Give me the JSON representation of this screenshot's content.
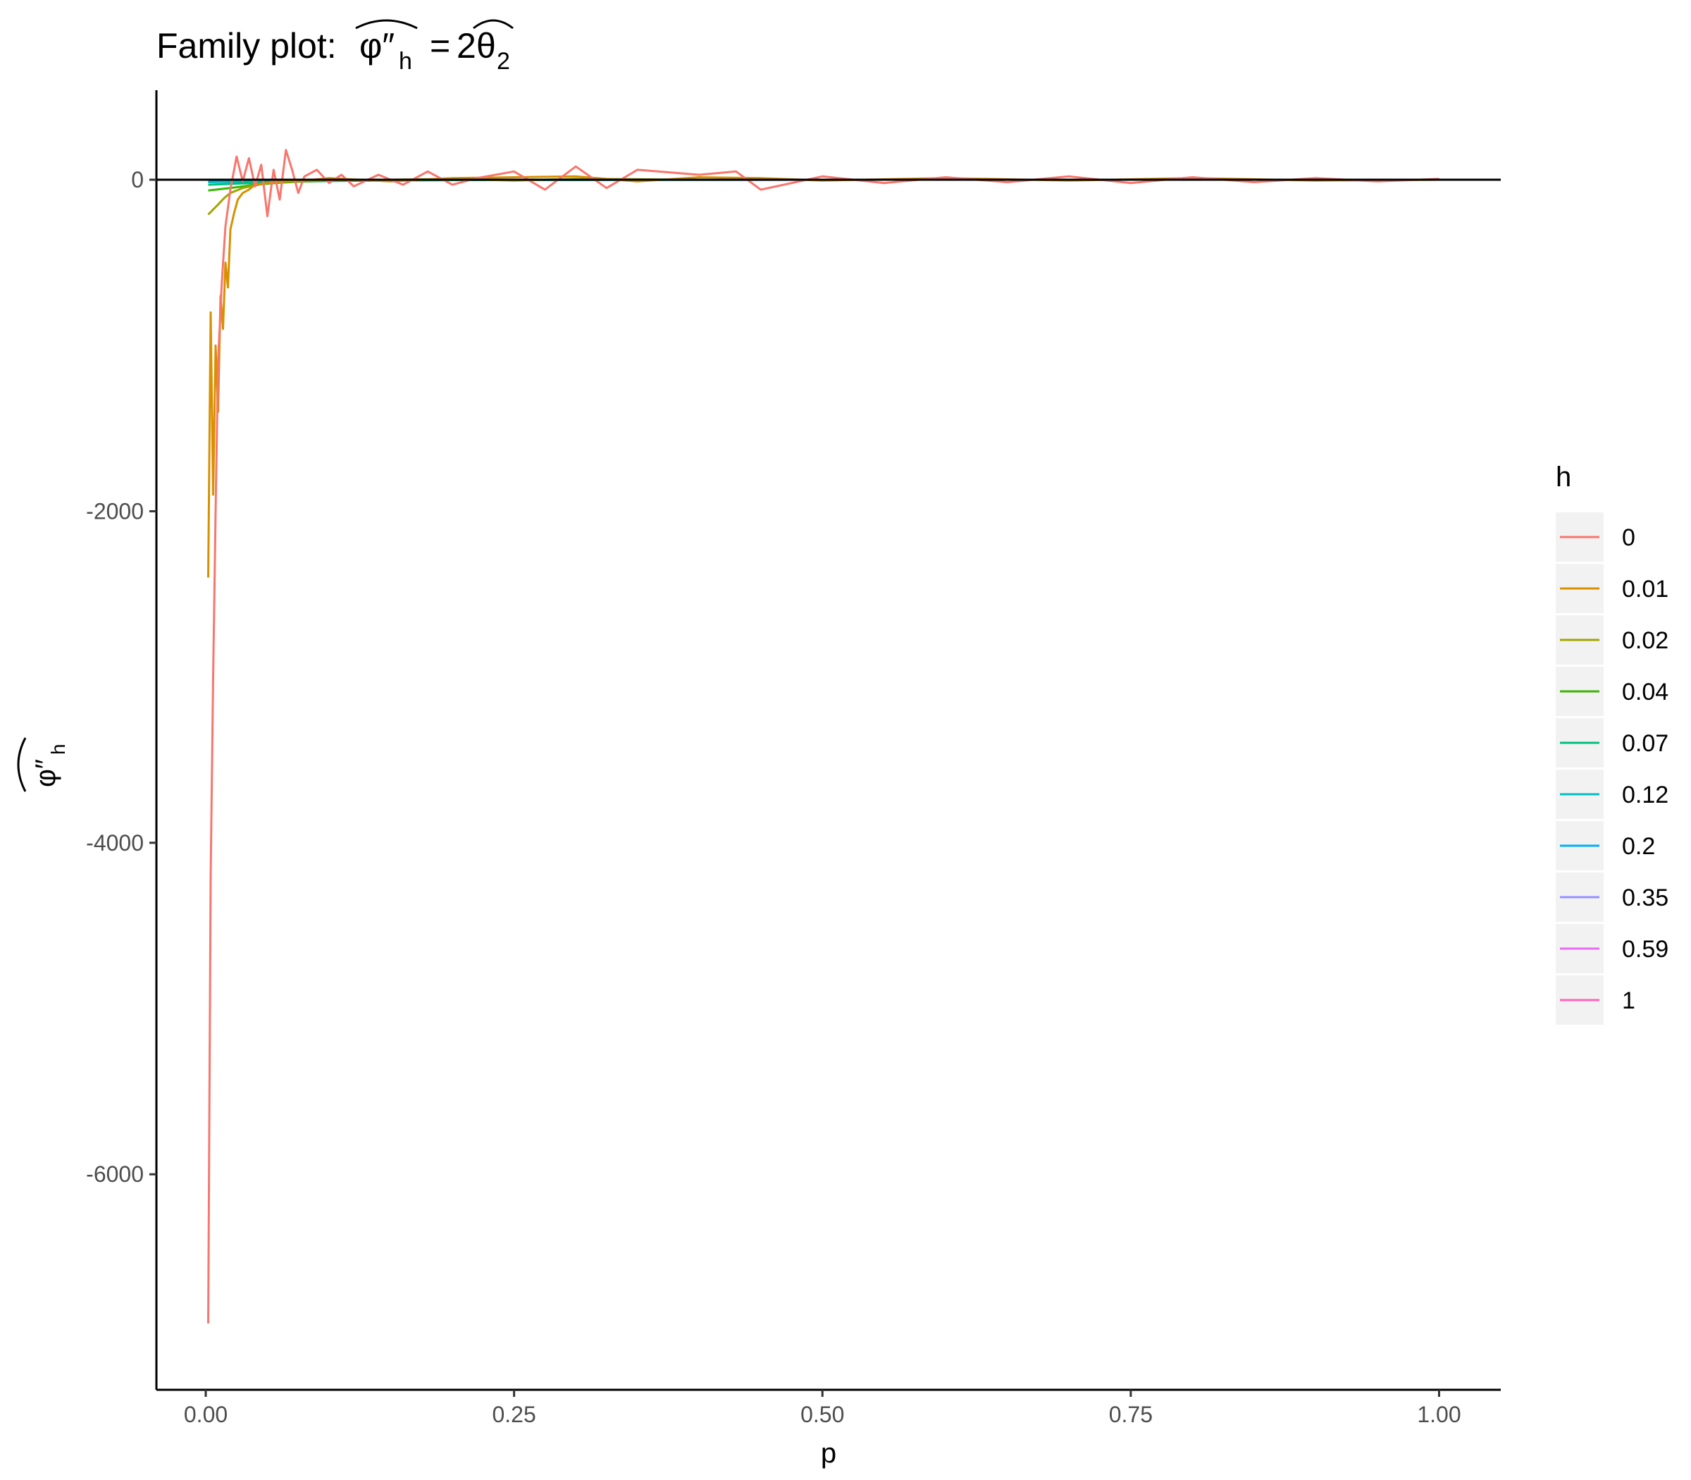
{
  "chart_data": {
    "type": "line",
    "title_prefix": "Family plot:",
    "title_lhs": "φ″",
    "title_lhs_sub": "h",
    "title_eq": "=",
    "title_rhs_coef": "2",
    "title_rhs": "θ",
    "title_rhs_sub": "2",
    "xlabel": "p",
    "ylabel_main": "φ″",
    "ylabel_sub": "h",
    "xlim": [
      -0.04,
      1.05
    ],
    "ylim": [
      -7300,
      540
    ],
    "x_ticks": [
      0.0,
      0.25,
      0.5,
      0.75,
      1.0
    ],
    "x_tick_labels": [
      "0.00",
      "0.25",
      "0.50",
      "0.75",
      "1.00"
    ],
    "y_ticks": [
      -6000,
      -4000,
      -2000,
      0
    ],
    "y_tick_labels": [
      "-6000",
      "-4000",
      "-2000",
      "0"
    ],
    "hline_y": 0,
    "grid": false,
    "legend": {
      "title": "h",
      "placement": "right",
      "labels": [
        "0",
        "0.01",
        "0.02",
        "0.04",
        "0.07",
        "0.12",
        "0.2",
        "0.35",
        "0.59",
        "1"
      ],
      "colors": [
        "#F8766D",
        "#D89000",
        "#A3A500",
        "#39B600",
        "#00BF7D",
        "#00BFC4",
        "#00B0F6",
        "#9590FF",
        "#E76BF3",
        "#FF62BC"
      ]
    },
    "series": [
      {
        "name": "0",
        "color": "#F8766D",
        "x": [
          0.002,
          0.004,
          0.006,
          0.008,
          0.01,
          0.013,
          0.016,
          0.02,
          0.025,
          0.03,
          0.035,
          0.04,
          0.045,
          0.05,
          0.055,
          0.06,
          0.065,
          0.07,
          0.075,
          0.08,
          0.09,
          0.1,
          0.11,
          0.12,
          0.14,
          0.16,
          0.18,
          0.2,
          0.22,
          0.25,
          0.275,
          0.3,
          0.325,
          0.35,
          0.4,
          0.43,
          0.45,
          0.5,
          0.55,
          0.6,
          0.65,
          0.7,
          0.75,
          0.8,
          0.85,
          0.9,
          0.95,
          1.0
        ],
        "y": [
          -6900,
          -4200,
          -3000,
          -2000,
          -1100,
          -620,
          -280,
          -60,
          140,
          -10,
          130,
          -40,
          90,
          -220,
          60,
          -120,
          180,
          60,
          -80,
          20,
          60,
          -20,
          30,
          -40,
          30,
          -30,
          50,
          -30,
          10,
          50,
          -60,
          80,
          -50,
          60,
          30,
          50,
          -60,
          20,
          -20,
          15,
          -15,
          20,
          -20,
          15,
          -15,
          10,
          -10,
          5
        ]
      },
      {
        "name": "0.01",
        "color": "#D89000",
        "x": [
          0.002,
          0.004,
          0.006,
          0.008,
          0.01,
          0.012,
          0.014,
          0.016,
          0.018,
          0.02,
          0.023,
          0.026,
          0.03,
          0.035,
          0.04,
          0.05,
          0.06,
          0.08,
          0.1,
          0.15,
          0.2,
          0.25,
          0.3,
          0.35,
          0.4,
          0.45,
          0.5,
          0.6,
          0.7,
          0.8,
          0.9,
          1.0
        ],
        "y": [
          -2400,
          -800,
          -1900,
          -1000,
          -1400,
          -700,
          -900,
          -500,
          -650,
          -300,
          -200,
          -120,
          -80,
          -60,
          -30,
          -20,
          -10,
          -5,
          10,
          -10,
          10,
          15,
          20,
          -10,
          15,
          10,
          -5,
          10,
          -5,
          10,
          -5,
          0
        ]
      },
      {
        "name": "0.02",
        "color": "#A3A500",
        "x": [
          0.002,
          0.006,
          0.01,
          0.015,
          0.02,
          0.03,
          0.04,
          0.05,
          0.07,
          0.1,
          0.15,
          0.2,
          0.25,
          0.3,
          0.4,
          0.5,
          0.6,
          0.7,
          0.8,
          0.9,
          1.0
        ],
        "y": [
          -210,
          -180,
          -150,
          -110,
          -80,
          -50,
          -35,
          -20,
          -10,
          -5,
          0,
          5,
          -5,
          5,
          0,
          0,
          0,
          0,
          0,
          0,
          0
        ]
      },
      {
        "name": "0.04",
        "color": "#39B600",
        "x": [
          0.002,
          0.02,
          0.04,
          0.06,
          0.08,
          0.1,
          0.15,
          0.2,
          0.3,
          0.5,
          0.7,
          1.0
        ],
        "y": [
          -65,
          -50,
          -30,
          -18,
          -10,
          -5,
          -2,
          0,
          0,
          0,
          0,
          0
        ]
      },
      {
        "name": "0.07",
        "color": "#00BF7D",
        "x": [
          0.002,
          0.03,
          0.06,
          0.1,
          0.15,
          0.25,
          0.5,
          1.0
        ],
        "y": [
          -30,
          -22,
          -14,
          -8,
          -4,
          -1,
          0,
          0
        ]
      },
      {
        "name": "0.12",
        "color": "#00BFC4",
        "x": [
          0.002,
          0.05,
          0.1,
          0.2,
          0.5,
          1.0
        ],
        "y": [
          -15,
          -10,
          -6,
          -2,
          0,
          0
        ]
      },
      {
        "name": "0.2",
        "color": "#00B0F6",
        "x": [
          0.002,
          0.05,
          0.1,
          0.2,
          0.5,
          1.0
        ],
        "y": [
          -10,
          -7,
          -4,
          -1,
          0,
          0
        ]
      },
      {
        "name": "0.35",
        "color": "#9590FF",
        "x": [
          0.002,
          0.1,
          0.3,
          0.6,
          1.0
        ],
        "y": [
          -5,
          -3,
          -1,
          0,
          0
        ]
      },
      {
        "name": "0.59",
        "color": "#E76BF3",
        "x": [
          0.002,
          0.1,
          0.3,
          0.6,
          1.0
        ],
        "y": [
          -3,
          -2,
          -1,
          0,
          0
        ]
      },
      {
        "name": "1",
        "color": "#FF62BC",
        "x": [
          0.002,
          0.1,
          0.3,
          0.6,
          1.0
        ],
        "y": [
          -2,
          -1,
          0,
          0,
          0
        ]
      }
    ]
  }
}
